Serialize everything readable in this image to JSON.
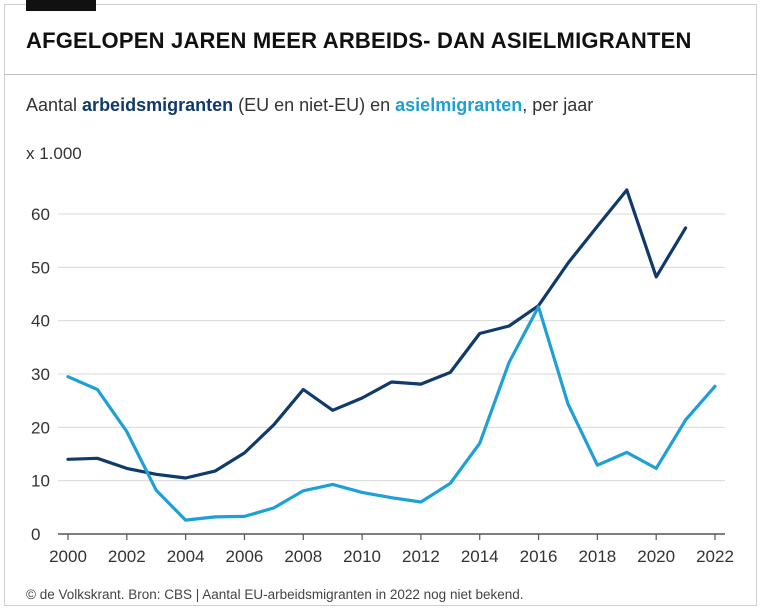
{
  "title": "AFGELOPEN JAREN MEER ARBEIDS- DAN ASIELMIGRANTEN",
  "subtitle": {
    "prefix": "Aantal ",
    "series1": "arbeidsmigranten",
    "middle": " (EU en niet-EU) en ",
    "series2": "asielmigranten",
    "suffix": ", per jaar"
  },
  "unit_label": "x 1.000",
  "footnote": "© de Volkskrant. Bron: CBS | Aantal EU-arbeidsmigranten in 2022 nog niet bekend.",
  "colors": {
    "arbeid": "#0f3a6b",
    "asiel": "#1ea0d6",
    "grid": "#d9d9d9",
    "axis": "#555555"
  },
  "chart_data": {
    "type": "line",
    "title": "AFGELOPEN JAREN MEER ARBEIDS- DAN ASIELMIGRANTEN",
    "xlabel": "",
    "ylabel": "x 1.000",
    "x": [
      2000,
      2001,
      2002,
      2003,
      2004,
      2005,
      2006,
      2007,
      2008,
      2009,
      2010,
      2011,
      2012,
      2013,
      2014,
      2015,
      2016,
      2017,
      2018,
      2019,
      2020,
      2021,
      2022
    ],
    "xticks": [
      "2000",
      "2002",
      "2004",
      "2006",
      "2008",
      "2010",
      "2012",
      "2014",
      "2016",
      "2018",
      "2020",
      "2022"
    ],
    "yticks": [
      "0",
      "10",
      "20",
      "30",
      "40",
      "50",
      "60"
    ],
    "ylim": [
      0,
      65
    ],
    "xlim": [
      2000,
      2022
    ],
    "grid": true,
    "series": [
      {
        "name": "arbeidsmigranten",
        "color_key": "arbeid",
        "values": [
          14,
          14.2,
          12.3,
          11.2,
          10.5,
          11.8,
          15.2,
          20.5,
          27.1,
          23.2,
          25.5,
          28.5,
          28.1,
          30.3,
          37.6,
          39,
          42.8,
          50.8,
          57.7,
          64.5,
          48.2,
          57.4,
          null
        ]
      },
      {
        "name": "asielmigranten",
        "color_key": "asiel",
        "values": [
          29.5,
          27.1,
          19.2,
          8.2,
          2.6,
          3.2,
          3.3,
          4.9,
          8.1,
          9.3,
          7.8,
          6.8,
          6,
          9.5,
          17,
          32.2,
          42.6,
          24.4,
          12.9,
          15.3,
          12.3,
          21.4,
          27.7
        ]
      }
    ]
  }
}
